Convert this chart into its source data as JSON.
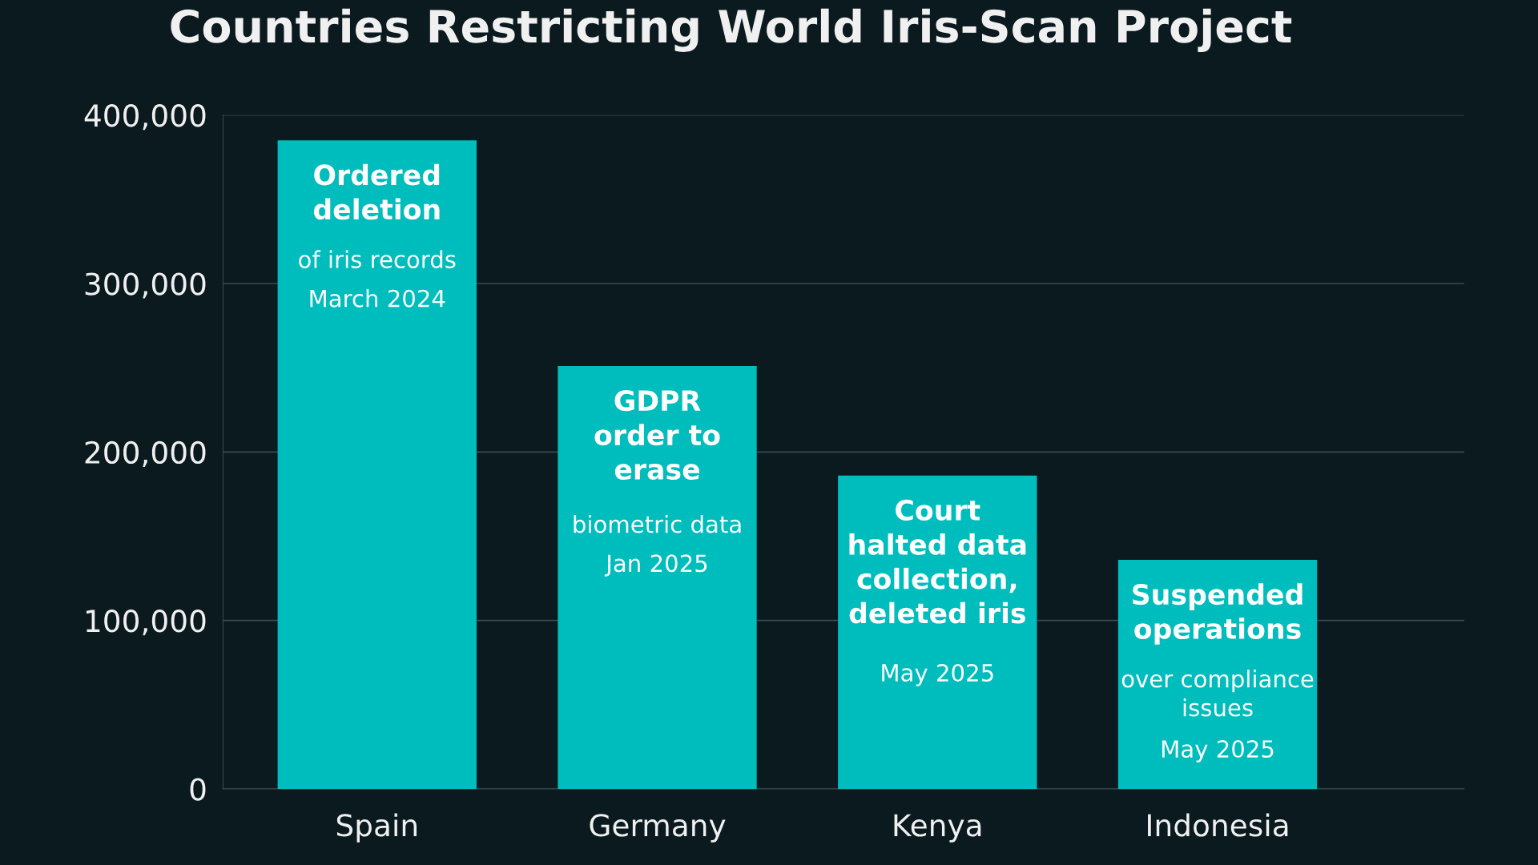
{
  "chart_data": {
    "type": "bar",
    "title": "Countries Restricting World Iris-Scan Project",
    "categories": [
      "Spain",
      "Germany",
      "Kenya",
      "Indonesia"
    ],
    "values": [
      385000,
      251000,
      186000,
      136000
    ],
    "color": "#00bdbd",
    "ylim": [
      0,
      400000
    ],
    "yticks": [
      {
        "value": 0,
        "label": "0"
      },
      {
        "value": 100000,
        "label": "100,000"
      },
      {
        "value": 200000,
        "label": "200,000"
      },
      {
        "value": 300000,
        "label": "300,000"
      },
      {
        "value": 400000,
        "label": "400,000"
      }
    ],
    "grid": "y",
    "annotations": [
      "Ordered\ndeletion\n\nof iris records\n\nMarch 2024",
      "GDPR\norder to\nerase\n\nbiometric data\n\nJan 2025",
      "Court\nhalted data\ncollection,\ndeleted iris\n\nMay 2025",
      "Suspended\noperations\n\nover compliance\nissues\n\nMay 2025"
    ]
  }
}
